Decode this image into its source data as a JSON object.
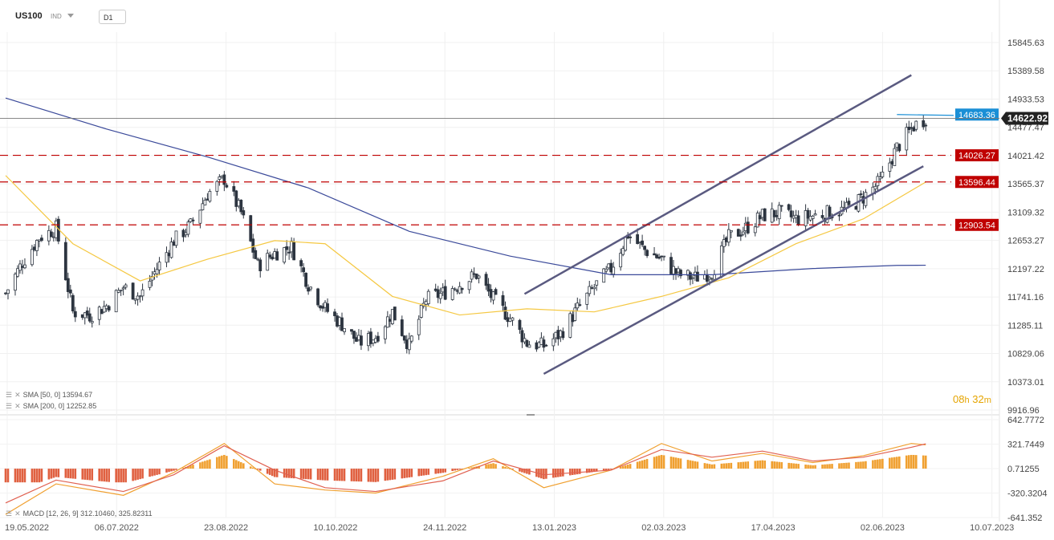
{
  "header": {
    "symbol": "US100",
    "type": "IND",
    "timeframe": "D1"
  },
  "countdown": {
    "hours": "08",
    "hours_unit": "h",
    "minutes": "32",
    "minutes_unit": "m"
  },
  "legend": {
    "sma50": "SMA [50, 0]  13594.67",
    "sma200": "SMA [200, 0]  12252.85",
    "macd": "MACD [12, 26, 9]  312.10460,   325.82311"
  },
  "colors": {
    "up": "#ffffff",
    "down": "#2d3540",
    "sma50": "#f5c842",
    "sma200": "#3b4a9a",
    "level": "#c00000",
    "channel": "#5a5a80",
    "macd_hist": "#f0a030",
    "macd_hist_neg": "#e06040",
    "macd_line": "#f0a030",
    "signal_line": "#e06050",
    "price_tag": "#222222",
    "resist_tag": "#1a8fd6"
  },
  "chart_data": [
    {
      "type": "candlestick",
      "title": "US100",
      "x_labels": [
        "19.05.2022",
        "06.07.2022",
        "23.08.2022",
        "10.10.2022",
        "24.11.2022",
        "13.01.2023",
        "02.03.2023",
        "17.04.2023",
        "02.06.2023",
        "10.07.2023"
      ],
      "y_ticks": [
        "15845.63",
        "15389.58",
        "14933.53",
        "14477.47",
        "14021.42",
        "13565.37",
        "13109.32",
        "12653.27",
        "12197.22",
        "11741.16",
        "11285.11",
        "10829.06",
        "10373.01",
        "9916.96"
      ],
      "ylim": [
        9916.96,
        16250
      ],
      "current_price": "14622.92",
      "horizontal_levels": [
        {
          "label": "14683.36",
          "value": 14683.36,
          "style": "resistance"
        },
        {
          "label": "14026.27",
          "value": 14026.27,
          "style": "dashed"
        },
        {
          "label": "13596.44",
          "value": 13596.44,
          "style": "dashed"
        },
        {
          "label": "12903.54",
          "value": 12903.54,
          "style": "dashed"
        }
      ],
      "channel": {
        "upper": [
          [
            "2022-12-21",
            11790
          ],
          [
            "2023-05-31",
            15320
          ]
        ],
        "lower": [
          [
            "2022-12-29",
            10500
          ],
          [
            "2023-06-05",
            13850
          ]
        ]
      },
      "close_series": [
        [
          "2022-05-19",
          11800
        ],
        [
          "2022-05-26",
          12300
        ],
        [
          "2022-06-02",
          12700
        ],
        [
          "2022-06-09",
          12850
        ],
        [
          "2022-06-16",
          11500
        ],
        [
          "2022-06-23",
          11450
        ],
        [
          "2022-06-30",
          11600
        ],
        [
          "2022-07-07",
          11900
        ],
        [
          "2022-07-14",
          11750
        ],
        [
          "2022-07-21",
          12200
        ],
        [
          "2022-07-28",
          12650
        ],
        [
          "2022-08-04",
          12900
        ],
        [
          "2022-08-11",
          13400
        ],
        [
          "2022-08-18",
          13650
        ],
        [
          "2022-08-25",
          13100
        ],
        [
          "2022-09-01",
          12250
        ],
        [
          "2022-09-08",
          12450
        ],
        [
          "2022-09-15",
          12550
        ],
        [
          "2022-09-22",
          11950
        ],
        [
          "2022-09-29",
          11550
        ],
        [
          "2022-10-06",
          11300
        ],
        [
          "2022-10-13",
          11000
        ],
        [
          "2022-10-20",
          11100
        ],
        [
          "2022-10-27",
          11500
        ],
        [
          "2022-11-03",
          10950
        ],
        [
          "2022-11-10",
          11700
        ],
        [
          "2022-11-17",
          11800
        ],
        [
          "2022-11-24",
          11950
        ],
        [
          "2022-12-01",
          12100
        ],
        [
          "2022-12-08",
          11700
        ],
        [
          "2022-12-15",
          11400
        ],
        [
          "2022-12-22",
          11000
        ],
        [
          "2022-12-29",
          10950
        ],
        [
          "2023-01-05",
          11150
        ],
        [
          "2023-01-12",
          11550
        ],
        [
          "2023-01-19",
          11900
        ],
        [
          "2023-01-26",
          12200
        ],
        [
          "2023-02-02",
          12750
        ],
        [
          "2023-02-09",
          12500
        ],
        [
          "2023-02-16",
          12350
        ],
        [
          "2023-02-23",
          12100
        ],
        [
          "2023-03-02",
          12050
        ],
        [
          "2023-03-09",
          12150
        ],
        [
          "2023-03-16",
          12700
        ],
        [
          "2023-03-23",
          12850
        ],
        [
          "2023-03-30",
          13050
        ],
        [
          "2023-04-06",
          13100
        ],
        [
          "2023-04-13",
          13000
        ],
        [
          "2023-04-20",
          13050
        ],
        [
          "2023-04-27",
          13100
        ],
        [
          "2023-05-04",
          13150
        ],
        [
          "2023-05-11",
          13350
        ],
        [
          "2023-05-18",
          13600
        ],
        [
          "2023-05-25",
          14150
        ],
        [
          "2023-06-01",
          14500
        ],
        [
          "2023-06-06",
          14622.92
        ]
      ],
      "sma50": [
        [
          "2022-05-19",
          13700
        ],
        [
          "2022-06-16",
          12600
        ],
        [
          "2022-07-14",
          12000
        ],
        [
          "2022-08-11",
          12350
        ],
        [
          "2022-09-08",
          12650
        ],
        [
          "2022-09-29",
          12600
        ],
        [
          "2022-10-27",
          11750
        ],
        [
          "2022-11-24",
          11450
        ],
        [
          "2022-12-22",
          11550
        ],
        [
          "2023-01-19",
          11500
        ],
        [
          "2023-02-16",
          11750
        ],
        [
          "2023-03-16",
          12050
        ],
        [
          "2023-04-13",
          12600
        ],
        [
          "2023-05-11",
          13000
        ],
        [
          "2023-06-06",
          13594.67
        ]
      ],
      "sma200": [
        [
          "2022-05-19",
          14950
        ],
        [
          "2022-06-30",
          14450
        ],
        [
          "2022-08-11",
          14000
        ],
        [
          "2022-09-22",
          13500
        ],
        [
          "2022-11-03",
          12800
        ],
        [
          "2022-12-15",
          12400
        ],
        [
          "2023-01-26",
          12100
        ],
        [
          "2023-03-09",
          12100
        ],
        [
          "2023-04-20",
          12200
        ],
        [
          "2023-05-25",
          12250
        ],
        [
          "2023-06-06",
          12252.85
        ]
      ]
    },
    {
      "type": "bar",
      "title": "MACD [12, 26, 9]",
      "y_ticks": [
        "642.7772",
        "321.7449",
        "0.71255",
        "-320.3204",
        "-641.352"
      ],
      "ylim": [
        -641.352,
        642.7772
      ],
      "macd_line": [
        [
          "2022-05-19",
          -600
        ],
        [
          "2022-06-09",
          -200
        ],
        [
          "2022-07-07",
          -350
        ],
        [
          "2022-07-28",
          -50
        ],
        [
          "2022-08-18",
          330
        ],
        [
          "2022-09-08",
          -200
        ],
        [
          "2022-09-29",
          -280
        ],
        [
          "2022-10-20",
          -320
        ],
        [
          "2022-11-17",
          -100
        ],
        [
          "2022-12-08",
          130
        ],
        [
          "2022-12-29",
          -250
        ],
        [
          "2023-01-26",
          -20
        ],
        [
          "2023-02-16",
          330
        ],
        [
          "2023-03-09",
          100
        ],
        [
          "2023-03-30",
          200
        ],
        [
          "2023-04-20",
          80
        ],
        [
          "2023-05-11",
          170
        ],
        [
          "2023-05-31",
          330
        ],
        [
          "2023-06-06",
          312.1
        ]
      ],
      "signal_line": [
        [
          "2022-05-19",
          -450
        ],
        [
          "2022-06-09",
          -150
        ],
        [
          "2022-07-07",
          -300
        ],
        [
          "2022-07-28",
          -80
        ],
        [
          "2022-08-18",
          300
        ],
        [
          "2022-09-08",
          -20
        ],
        [
          "2022-09-29",
          -250
        ],
        [
          "2022-10-20",
          -300
        ],
        [
          "2022-11-17",
          -160
        ],
        [
          "2022-12-08",
          100
        ],
        [
          "2022-12-29",
          -80
        ],
        [
          "2023-01-26",
          -20
        ],
        [
          "2023-02-16",
          250
        ],
        [
          "2023-03-09",
          150
        ],
        [
          "2023-03-30",
          230
        ],
        [
          "2023-04-20",
          100
        ],
        [
          "2023-05-11",
          150
        ],
        [
          "2023-05-31",
          280
        ],
        [
          "2023-06-06",
          325.82
        ]
      ]
    }
  ]
}
